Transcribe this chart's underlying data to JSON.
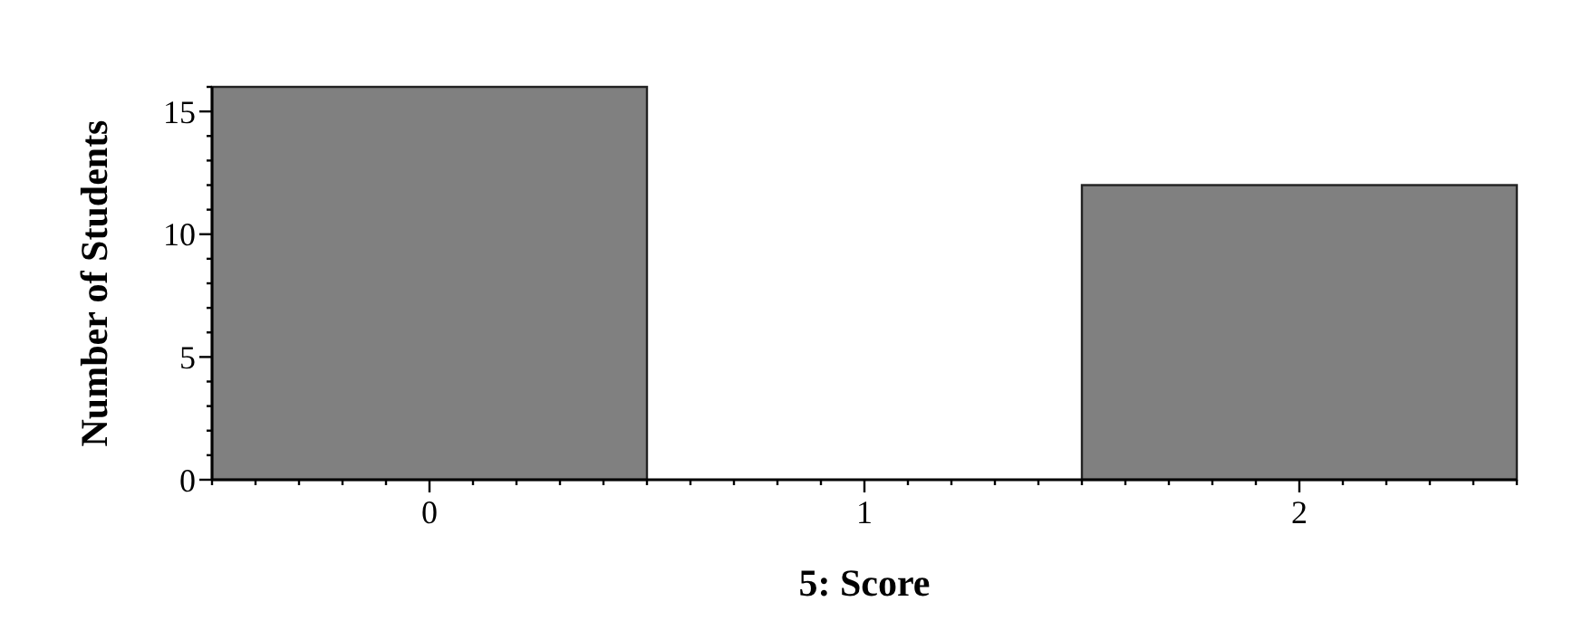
{
  "chart_data": {
    "type": "histogram",
    "xlabel": "5: Score",
    "ylabel": "Number of Students",
    "bins": [
      -0.5,
      0.5,
      1.5,
      2.5
    ],
    "values": [
      16,
      0,
      12
    ],
    "color": "#808080",
    "xlim": [
      -0.5,
      2.5
    ],
    "xticks": [
      {
        "value": -0.5,
        "label": null
      },
      {
        "value": -0.4,
        "label": null
      },
      {
        "value": -0.3,
        "label": null
      },
      {
        "value": -0.2,
        "label": null
      },
      {
        "value": -0.1,
        "label": null
      },
      0,
      {
        "value": 0.1,
        "label": null
      },
      {
        "value": 0.2,
        "label": null
      },
      {
        "value": 0.3,
        "label": null
      },
      {
        "value": 0.4,
        "label": null
      },
      {
        "value": 0.5,
        "label": null
      },
      {
        "value": 0.6,
        "label": null
      },
      {
        "value": 0.7,
        "label": null
      },
      {
        "value": 0.8,
        "label": null
      },
      {
        "value": 0.9,
        "label": null
      },
      1,
      {
        "value": 1.1,
        "label": null
      },
      {
        "value": 1.2,
        "label": null
      },
      {
        "value": 1.3,
        "label": null
      },
      {
        "value": 1.4,
        "label": null
      },
      {
        "value": 1.5,
        "label": null
      },
      {
        "value": 1.6,
        "label": null
      },
      {
        "value": 1.7,
        "label": null
      },
      {
        "value": 1.8,
        "label": null
      },
      {
        "value": 1.9,
        "label": null
      },
      2,
      {
        "value": 2.1,
        "label": null
      },
      {
        "value": 2.2,
        "label": null
      },
      {
        "value": 2.3,
        "label": null
      },
      {
        "value": 2.4,
        "label": null
      },
      {
        "value": 2.5,
        "label": null
      }
    ],
    "ylim": [
      0,
      16
    ],
    "yticks": [
      0,
      {
        "value": 1,
        "label": null
      },
      {
        "value": 2,
        "label": null
      },
      {
        "value": 3,
        "label": null
      },
      {
        "value": 4,
        "label": null
      },
      5,
      {
        "value": 6,
        "label": null
      },
      {
        "value": 7,
        "label": null
      },
      {
        "value": 8,
        "label": null
      },
      {
        "value": 9,
        "label": null
      },
      10,
      {
        "value": 11,
        "label": null
      },
      {
        "value": 12,
        "label": null
      },
      {
        "value": 13,
        "label": null
      },
      {
        "value": 14,
        "label": null
      },
      15,
      {
        "value": 16,
        "label": null
      }
    ],
    "grid": false
  }
}
